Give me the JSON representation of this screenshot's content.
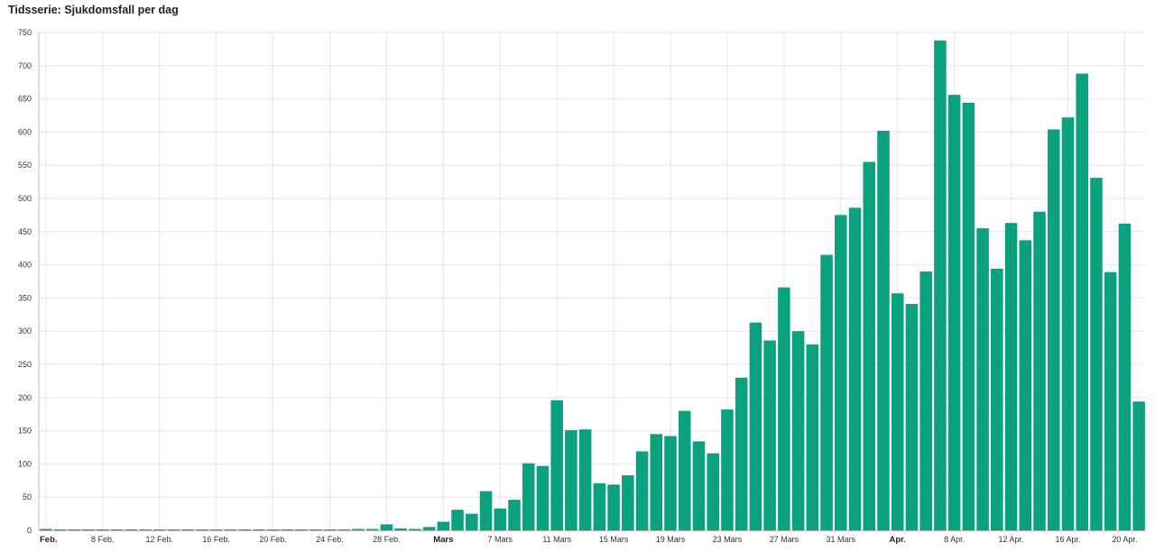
{
  "header": {
    "title": "Tidsserie: Sjukdomsfall per dag"
  },
  "colors": {
    "bar": "#0aa17f",
    "grid": "#e6e6e6",
    "axis": "#bdbdbd"
  },
  "chart_data": {
    "type": "bar",
    "title": "Tidsserie: Sjukdomsfall per dag",
    "xlabel": "",
    "ylabel": "",
    "ylim": [
      0,
      750
    ],
    "yticks": [
      0,
      50,
      100,
      150,
      200,
      250,
      300,
      350,
      400,
      450,
      500,
      550,
      600,
      650,
      700,
      750
    ],
    "grid": true,
    "x_start_date": "2020-02-04",
    "xtick_labels": [
      {
        "date": "2020-02-04",
        "label": "Feb.",
        "major": true
      },
      {
        "date": "2020-02-08",
        "label": "8 Feb.",
        "major": false
      },
      {
        "date": "2020-02-12",
        "label": "12 Feb.",
        "major": false
      },
      {
        "date": "2020-02-16",
        "label": "16 Feb.",
        "major": false
      },
      {
        "date": "2020-02-20",
        "label": "20 Feb.",
        "major": false
      },
      {
        "date": "2020-02-24",
        "label": "24 Feb.",
        "major": false
      },
      {
        "date": "2020-02-28",
        "label": "28 Feb.",
        "major": false
      },
      {
        "date": "2020-03-03",
        "label": "Mars",
        "major": true
      },
      {
        "date": "2020-03-07",
        "label": "7 Mars",
        "major": false
      },
      {
        "date": "2020-03-11",
        "label": "11 Mars",
        "major": false
      },
      {
        "date": "2020-03-15",
        "label": "15 Mars",
        "major": false
      },
      {
        "date": "2020-03-19",
        "label": "19 Mars",
        "major": false
      },
      {
        "date": "2020-03-23",
        "label": "23 Mars",
        "major": false
      },
      {
        "date": "2020-03-27",
        "label": "27 Mars",
        "major": false
      },
      {
        "date": "2020-03-31",
        "label": "31 Mars",
        "major": false
      },
      {
        "date": "2020-04-04",
        "label": "Apr.",
        "major": true
      },
      {
        "date": "2020-04-08",
        "label": "8 Apr.",
        "major": false
      },
      {
        "date": "2020-04-12",
        "label": "12 Apr.",
        "major": false
      },
      {
        "date": "2020-04-16",
        "label": "16 Apr.",
        "major": false
      },
      {
        "date": "2020-04-20",
        "label": "20 Apr.",
        "major": false
      }
    ],
    "values": [
      1,
      0,
      0,
      0,
      0,
      0,
      0,
      0,
      0,
      0,
      0,
      0,
      0,
      0,
      0,
      0,
      0,
      0,
      0,
      0,
      0,
      0,
      1,
      1,
      9,
      3,
      1,
      5,
      13,
      31,
      25,
      59,
      33,
      46,
      101,
      97,
      196,
      151,
      152,
      71,
      69,
      83,
      119,
      145,
      142,
      180,
      134,
      116,
      182,
      230,
      313,
      286,
      366,
      300,
      280,
      415,
      475,
      486,
      555,
      602,
      357,
      341,
      390,
      738,
      656,
      644,
      455,
      394,
      463,
      437,
      480,
      604,
      622,
      688,
      531,
      389,
      462,
      194
    ]
  }
}
